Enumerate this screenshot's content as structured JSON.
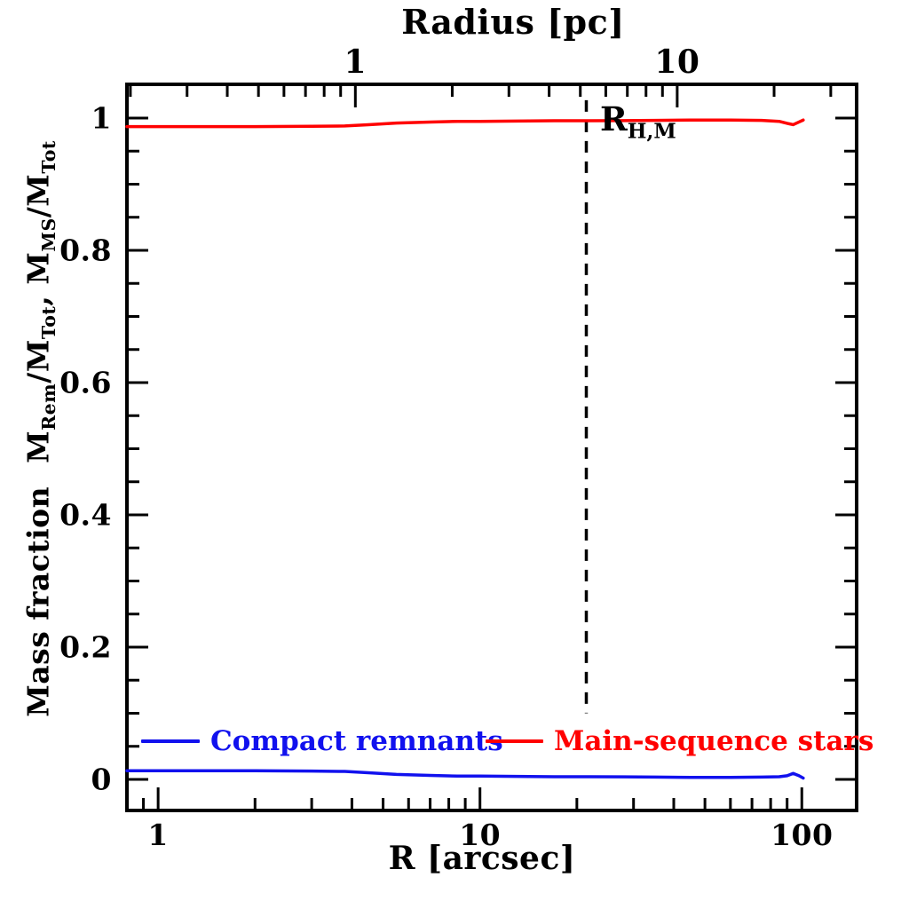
{
  "figure": {
    "background": "#ffffff",
    "frame_color": "#000000"
  },
  "chart_data": {
    "type": "line",
    "x_scale": "log",
    "y_scale": "linear",
    "grid": false,
    "xlabel_bottom": "R [arcsec]",
    "xlabel_top": "Radius [pc]",
    "ylabel_plain": "Mass fraction  M_Rem/M_Tot, M_MS/M_Tot",
    "xlim_arcsec": [
      0.8,
      148
    ],
    "ylim": [
      -0.047,
      1.051
    ],
    "arcsec_per_pc": 4.1,
    "x_ticks_bottom": [
      1,
      10,
      100
    ],
    "x_tick_labels_bottom": [
      "1",
      "10",
      "100"
    ],
    "x_ticks_top_pc": [
      1,
      10
    ],
    "x_tick_labels_top": [
      "1",
      "10"
    ],
    "y_ticks": [
      0,
      0.2,
      0.4,
      0.6,
      0.8,
      1
    ],
    "y_tick_labels": [
      "0",
      "0.2",
      "0.4",
      "0.6",
      "0.8",
      "1"
    ],
    "x": [
      0.8,
      1.0,
      1.5,
      2.0,
      3.0,
      3.8,
      4.5,
      5.5,
      7.0,
      8.5,
      10,
      13,
      17,
      22,
      28,
      35,
      45,
      60,
      75,
      85,
      90,
      94,
      98,
      101
    ],
    "series": [
      {
        "name": "Main-sequence stars",
        "color": "#ff0000",
        "values": [
          0.987,
          0.987,
          0.987,
          0.987,
          0.9875,
          0.988,
          0.99,
          0.9925,
          0.994,
          0.995,
          0.995,
          0.9955,
          0.996,
          0.996,
          0.9962,
          0.9965,
          0.997,
          0.997,
          0.9965,
          0.995,
          0.992,
          0.99,
          0.994,
          0.997
        ]
      },
      {
        "name": "Compact remnants",
        "color": "#1111ee",
        "values": [
          0.013,
          0.013,
          0.013,
          0.013,
          0.0125,
          0.012,
          0.01,
          0.0075,
          0.006,
          0.005,
          0.005,
          0.0045,
          0.004,
          0.004,
          0.0038,
          0.0035,
          0.003,
          0.003,
          0.0035,
          0.004,
          0.0055,
          0.009,
          0.0055,
          0.002
        ]
      }
    ],
    "annotation": {
      "type": "vline",
      "x_arcsec": 21.4,
      "y_from": 0.1,
      "y_to": 1.027,
      "style": "dashed",
      "color": "#000000",
      "label_main": "R",
      "label_sub": "H,M"
    },
    "legend_position": "inside bottom"
  },
  "ylabel_parts": {
    "prefix": "Mass fraction",
    "m1": "M",
    "s1": "Rem",
    "m2": "/M",
    "s2": "Tot",
    "sep": ",",
    "m3": "M",
    "s3": "MS",
    "m4": "/M",
    "s4": "Tot"
  },
  "legend": {
    "entries": [
      {
        "label": "Compact remnants",
        "color": "#1111ee"
      },
      {
        "label": "Main-sequence stars",
        "color": "#ff0000"
      }
    ]
  }
}
